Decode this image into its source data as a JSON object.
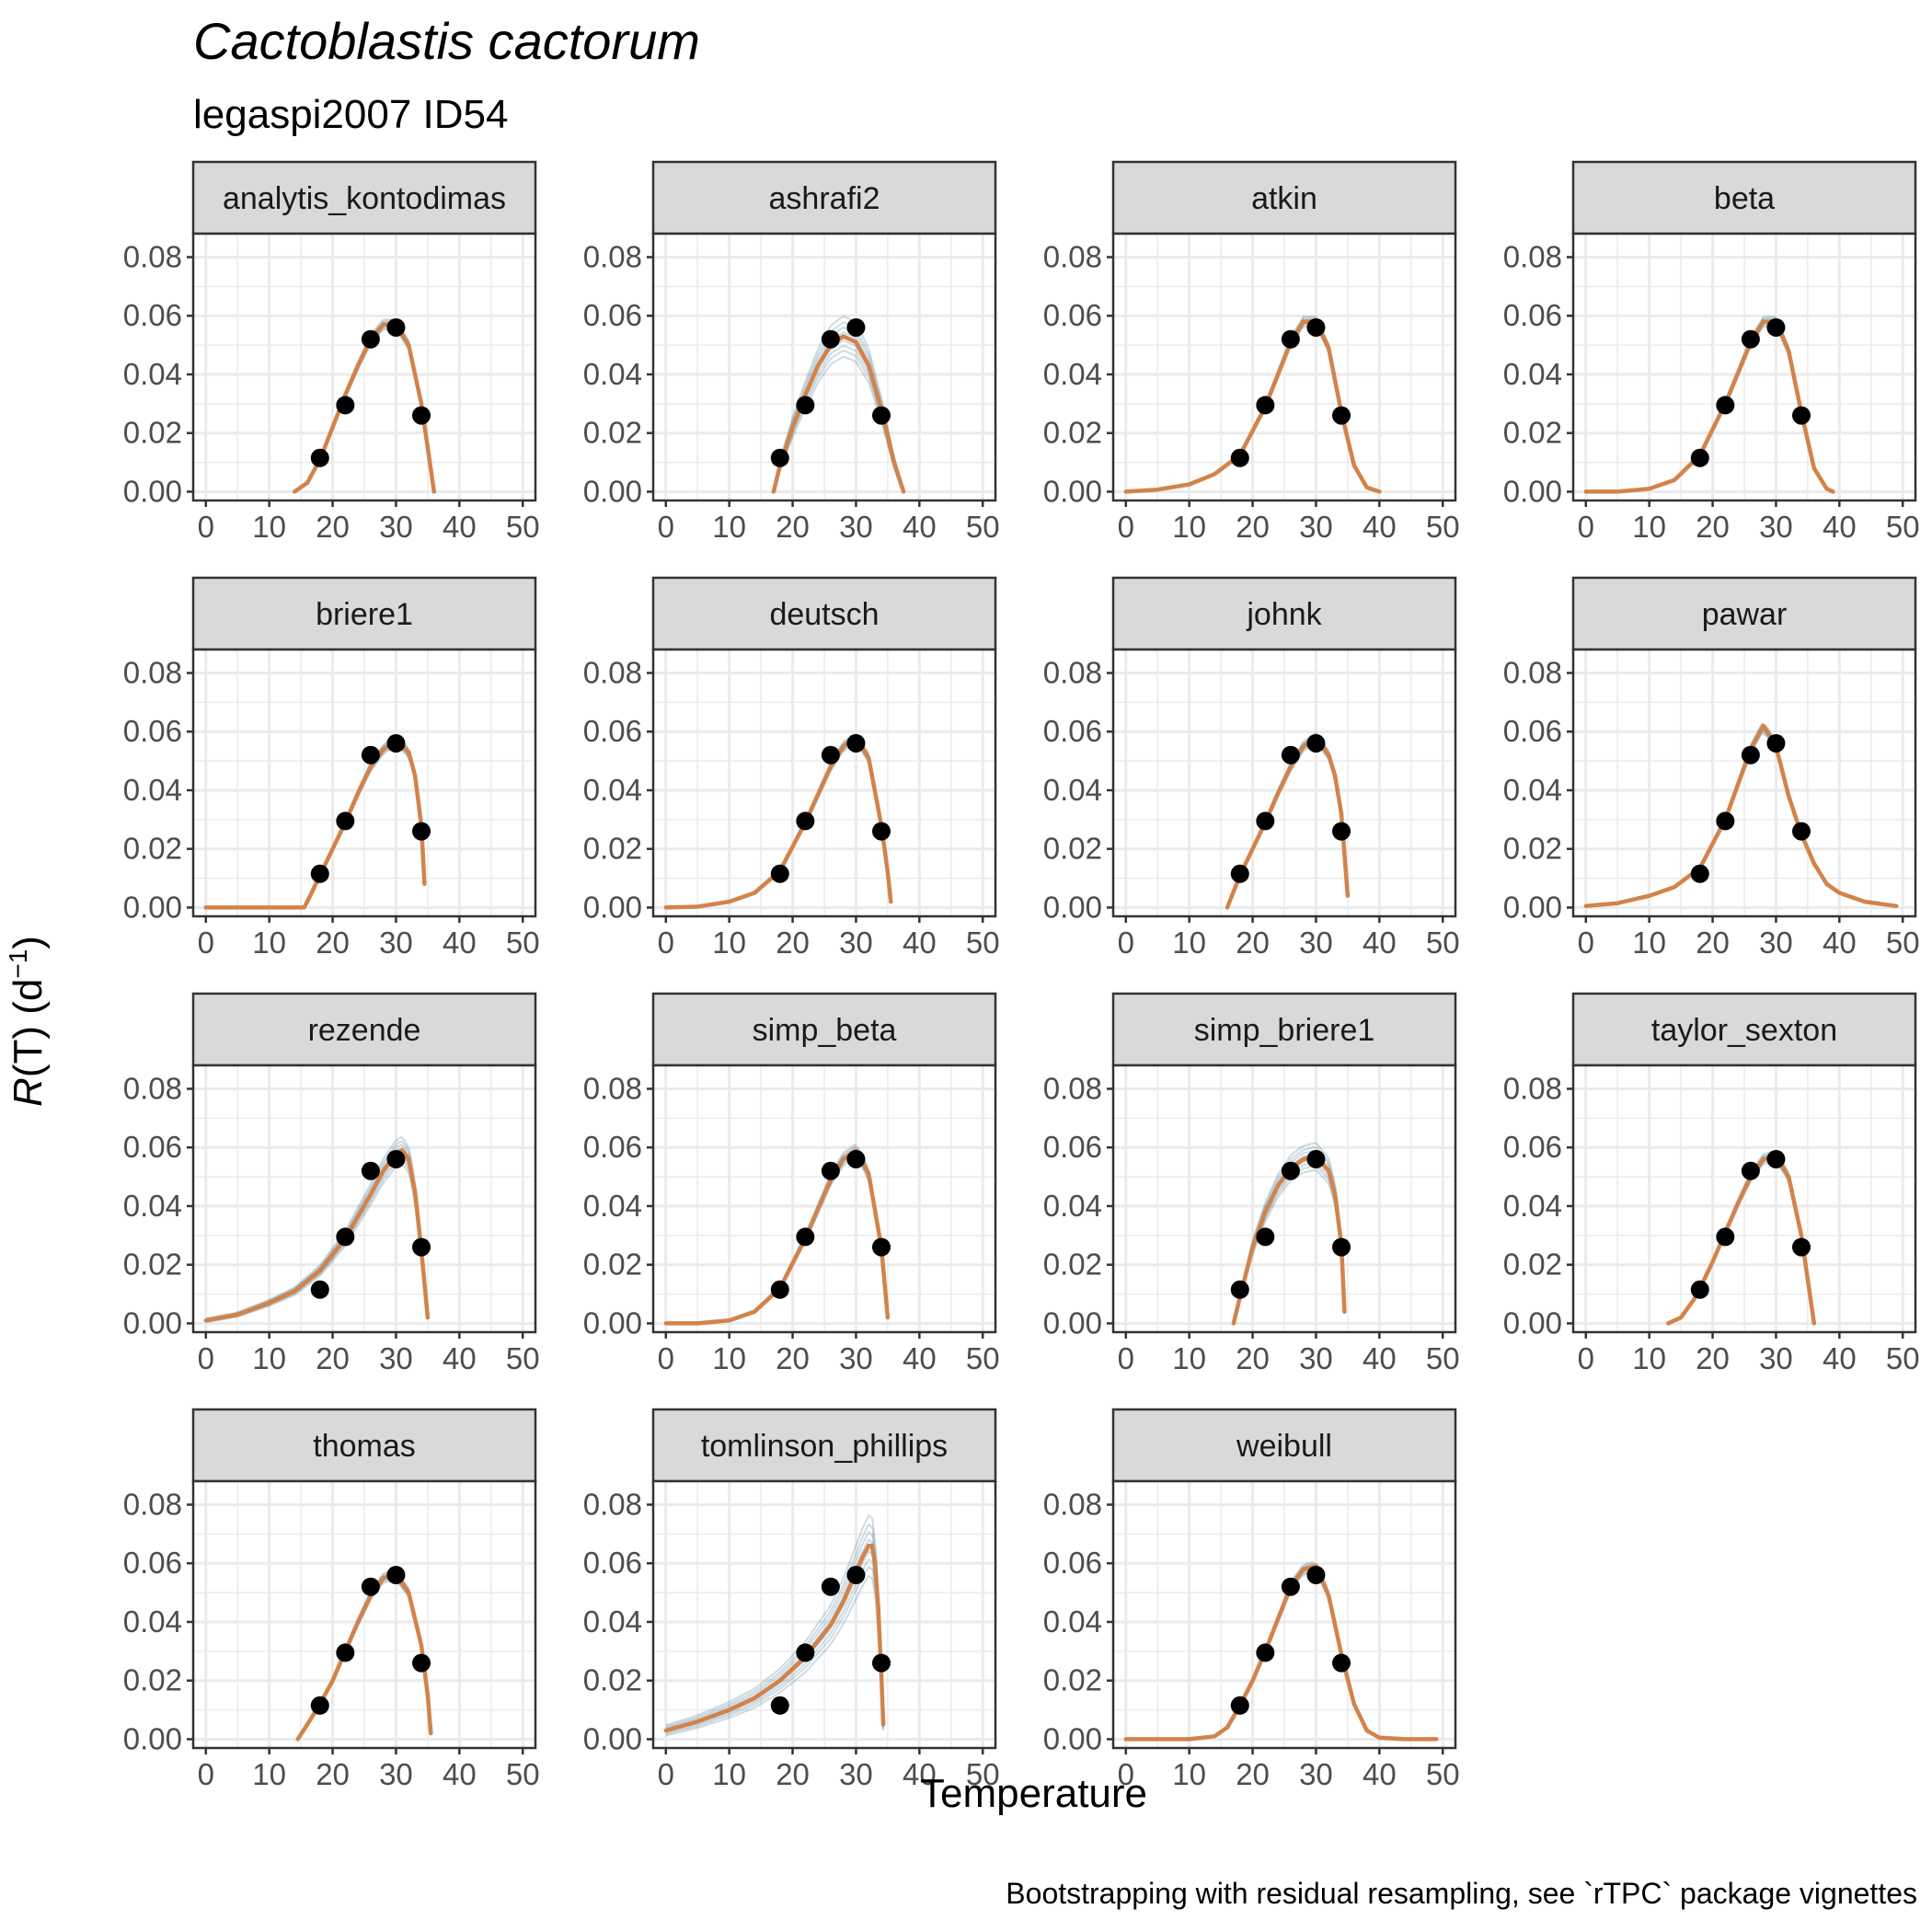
{
  "title": "Cactoblastis cactorum",
  "subtitle": "legaspi2007 ID54",
  "caption": "Bootstrapping with residual resampling, see `rTPC` package vignettes",
  "colors": {
    "fit": "#D2834A",
    "boot": "#1F5A7A",
    "points": "#000000",
    "strip_bg": "#D9D9D9",
    "grid": "#EBEBEB",
    "panel_border": "#333333"
  },
  "chart_data": {
    "type": "line",
    "xlabel": "Temperature",
    "ylabel_parts": {
      "italic": "R",
      "mid": "(T) (d",
      "sup": "−1",
      "end": ")"
    },
    "xlim": [
      -2,
      52
    ],
    "ylim": [
      -0.003,
      0.088
    ],
    "xticks": [
      0,
      10,
      20,
      30,
      40,
      50
    ],
    "yticks": [
      0.0,
      0.02,
      0.04,
      0.06,
      0.08
    ],
    "ytick_labels": [
      "0.00",
      "0.02",
      "0.04",
      "0.06",
      "0.08"
    ],
    "observed": {
      "x": [
        18,
        22,
        26,
        30,
        34
      ],
      "y": [
        0.0115,
        0.0295,
        0.052,
        0.056,
        0.026
      ]
    },
    "panels": [
      {
        "name": "analytis_kontodimas",
        "fit": {
          "x": [
            14,
            16,
            18,
            20,
            22,
            24,
            26,
            28,
            30,
            32,
            34,
            35,
            36
          ],
          "y": [
            0.0,
            0.003,
            0.011,
            0.022,
            0.033,
            0.043,
            0.052,
            0.057,
            0.057,
            0.05,
            0.03,
            0.015,
            0.0
          ]
        },
        "boot_spread": 0.0015
      },
      {
        "name": "ashrafi2",
        "fit": {
          "x": [
            17,
            18,
            20,
            22,
            24,
            26,
            28,
            30,
            32,
            34,
            36,
            37.5
          ],
          "y": [
            0.0,
            0.009,
            0.022,
            0.033,
            0.043,
            0.05,
            0.053,
            0.051,
            0.043,
            0.028,
            0.01,
            0.0
          ]
        },
        "boot_spread": 0.006
      },
      {
        "name": "atkin",
        "fit": {
          "x": [
            0,
            5,
            10,
            14,
            18,
            22,
            26,
            28,
            30,
            32,
            34,
            36,
            38,
            40
          ],
          "y": [
            0.0,
            0.0007,
            0.0025,
            0.006,
            0.0125,
            0.029,
            0.051,
            0.058,
            0.058,
            0.049,
            0.027,
            0.009,
            0.0015,
            0.0
          ]
        },
        "boot_spread": 0.0015
      },
      {
        "name": "beta",
        "fit": {
          "x": [
            0,
            5,
            10,
            14,
            18,
            22,
            26,
            28,
            30,
            32,
            34,
            36,
            38,
            39
          ],
          "y": [
            0.0,
            0.0,
            0.001,
            0.004,
            0.0125,
            0.03,
            0.051,
            0.058,
            0.058,
            0.048,
            0.027,
            0.008,
            0.001,
            0.0
          ]
        },
        "boot_spread": 0.0015
      },
      {
        "name": "briere1",
        "fit": {
          "x": [
            0,
            10,
            15.5,
            16,
            18,
            20,
            22,
            24,
            26,
            28,
            30,
            32,
            33,
            34,
            34.5
          ],
          "y": [
            0.0,
            0.0,
            0.0,
            0.002,
            0.011,
            0.02,
            0.029,
            0.039,
            0.048,
            0.054,
            0.057,
            0.053,
            0.045,
            0.028,
            0.008
          ]
        },
        "boot_spread": 0.0015
      },
      {
        "name": "deutsch",
        "fit": {
          "x": [
            0,
            5,
            10,
            14,
            18,
            22,
            26,
            28,
            30,
            32,
            34,
            35,
            35.5
          ],
          "y": [
            0.0,
            0.0003,
            0.002,
            0.005,
            0.0125,
            0.029,
            0.048,
            0.055,
            0.058,
            0.051,
            0.028,
            0.012,
            0.002
          ]
        },
        "boot_spread": 0.0015
      },
      {
        "name": "johnk",
        "fit": {
          "x": [
            16,
            18,
            20,
            22,
            24,
            26,
            28,
            30,
            32,
            33,
            34,
            35
          ],
          "y": [
            0.0,
            0.011,
            0.02,
            0.029,
            0.039,
            0.048,
            0.055,
            0.058,
            0.052,
            0.045,
            0.032,
            0.004
          ]
        },
        "boot_spread": 0.0015
      },
      {
        "name": "pawar",
        "fit": {
          "x": [
            0,
            5,
            10,
            14,
            18,
            22,
            24,
            26,
            28,
            30,
            32,
            34,
            36,
            38,
            40,
            44,
            49
          ],
          "y": [
            0.0005,
            0.0015,
            0.004,
            0.007,
            0.0135,
            0.03,
            0.042,
            0.054,
            0.062,
            0.055,
            0.038,
            0.025,
            0.015,
            0.008,
            0.005,
            0.002,
            0.0005
          ]
        },
        "boot_spread": 0.0015
      },
      {
        "name": "rezende",
        "fit": {
          "x": [
            0,
            5,
            10,
            14,
            18,
            22,
            26,
            28,
            30,
            31,
            32,
            33,
            34,
            35
          ],
          "y": [
            0.001,
            0.003,
            0.007,
            0.011,
            0.018,
            0.029,
            0.044,
            0.052,
            0.058,
            0.059,
            0.056,
            0.045,
            0.025,
            0.002
          ]
        },
        "boot_spread": 0.004
      },
      {
        "name": "simp_beta",
        "fit": {
          "x": [
            0,
            5,
            10,
            14,
            18,
            22,
            26,
            28,
            30,
            32,
            34,
            35
          ],
          "y": [
            0.0,
            0.0,
            0.001,
            0.004,
            0.012,
            0.029,
            0.049,
            0.056,
            0.059,
            0.051,
            0.026,
            0.002
          ]
        },
        "boot_spread": 0.002
      },
      {
        "name": "simp_briere1",
        "fit": {
          "x": [
            17,
            18,
            20,
            22,
            24,
            26,
            28,
            30,
            32,
            33,
            34,
            34.5
          ],
          "y": [
            0.0,
            0.009,
            0.026,
            0.038,
            0.047,
            0.053,
            0.056,
            0.057,
            0.052,
            0.044,
            0.027,
            0.004
          ]
        },
        "boot_spread": 0.004
      },
      {
        "name": "taylor_sexton",
        "fit": {
          "x": [
            13,
            15,
            17,
            18,
            20,
            22,
            24,
            26,
            28,
            30,
            32,
            34,
            35,
            36
          ],
          "y": [
            0.0,
            0.002,
            0.008,
            0.012,
            0.021,
            0.031,
            0.041,
            0.05,
            0.056,
            0.057,
            0.05,
            0.03,
            0.015,
            0.0
          ]
        },
        "boot_spread": 0.0015
      },
      {
        "name": "thomas",
        "fit": {
          "x": [
            14.5,
            16,
            18,
            20,
            22,
            24,
            26,
            28,
            30,
            32,
            34,
            35,
            35.5
          ],
          "y": [
            0.0,
            0.005,
            0.012,
            0.02,
            0.03,
            0.04,
            0.049,
            0.055,
            0.056,
            0.05,
            0.032,
            0.015,
            0.002
          ]
        },
        "boot_spread": 0.0015
      },
      {
        "name": "tomlinson_phillips",
        "fit": {
          "x": [
            0,
            5,
            10,
            14,
            18,
            22,
            26,
            28,
            30,
            31,
            32,
            32.5,
            33,
            33.5,
            34,
            34.3
          ],
          "y": [
            0.003,
            0.006,
            0.01,
            0.014,
            0.02,
            0.028,
            0.039,
            0.047,
            0.057,
            0.062,
            0.066,
            0.066,
            0.06,
            0.045,
            0.022,
            0.005
          ]
        },
        "boot_spread": 0.009
      },
      {
        "name": "weibull",
        "fit": {
          "x": [
            0,
            10,
            14,
            16,
            18,
            20,
            22,
            24,
            26,
            28,
            30,
            32,
            34,
            36,
            38,
            40,
            44,
            49
          ],
          "y": [
            0.0,
            0.0,
            0.001,
            0.004,
            0.0115,
            0.02,
            0.03,
            0.041,
            0.052,
            0.058,
            0.059,
            0.049,
            0.029,
            0.012,
            0.003,
            0.0005,
            0.0,
            0.0
          ]
        },
        "boot_spread": 0.0015
      }
    ]
  }
}
